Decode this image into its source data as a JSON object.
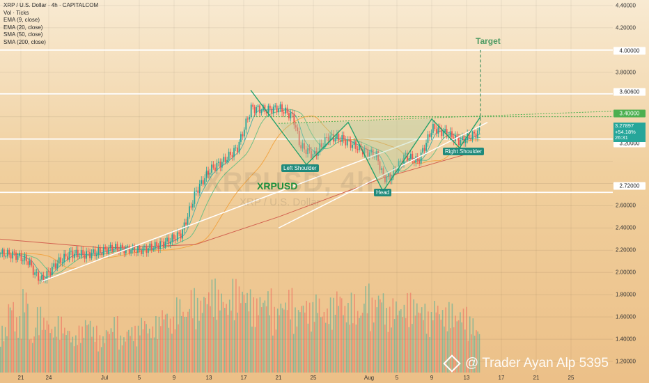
{
  "legend": {
    "title": "XRP / U.S. Dollar · 4h · CAPITALCOM",
    "lines": [
      "Vol · Ticks",
      "EMA (9, close)",
      "EMA (20, close)",
      "SMA (50, close)",
      "SMA (200, close)"
    ]
  },
  "watermark": {
    "name": "XRPUSD, 4h",
    "sub": "XRP / U.S. Dollar"
  },
  "symbol_label": "XRPUSD",
  "target_label": "Target",
  "pattern_labels": {
    "left_shoulder": "Left Shoulder",
    "head": "Head",
    "right_shoulder": "Right Shoulder"
  },
  "current_price": {
    "price": "3.27897",
    "change": "+54.18%",
    "countdown": "26:31"
  },
  "level_labels": {
    "l40": "4.00000",
    "l36": "3.60600",
    "l34": "3.40000",
    "l32": "3.20000",
    "l27": "2.72000"
  },
  "brand": "@ Trader Ayan Alp 5395",
  "colors": {
    "up": "#26a69a",
    "down": "#ef5350",
    "ema9": "#4fb1a5",
    "ema20": "#6fbf86",
    "sma50": "#f1a545",
    "sma200": "#d2604f",
    "trend": "#ffffff",
    "pattern_fill": "#a9cfa4",
    "pattern_line": "#24a16b"
  },
  "chart_data": {
    "type": "candlestick",
    "symbol": "XRP / U.S. Dollar",
    "interval": "4h",
    "ylim": [
      1.1,
      4.45
    ],
    "y_ticks": [
      "4.40000",
      "4.20000",
      "3.80000",
      "2.60000",
      "2.40000",
      "2.20000",
      "2.00000",
      "1.80000",
      "1.60000",
      "1.40000",
      "1.20000"
    ],
    "x_tick_labels": [
      "21",
      "24",
      "Jul",
      "5",
      "9",
      "13",
      "17",
      "21",
      "25",
      "Aug",
      "5",
      "9",
      "13",
      "17",
      "21",
      "25"
    ],
    "x_range": [
      0,
      88
    ],
    "x_ticks": [
      3,
      7,
      15,
      20,
      25,
      30,
      35,
      40,
      45,
      53,
      57,
      62,
      67,
      72,
      77,
      82
    ],
    "close_path": [
      [
        0,
        2.17
      ],
      [
        2,
        2.16
      ],
      [
        4,
        2.1
      ],
      [
        5,
        1.98
      ],
      [
        6,
        1.93
      ],
      [
        8,
        2.08
      ],
      [
        10,
        2.17
      ],
      [
        12,
        2.16
      ],
      [
        14,
        2.18
      ],
      [
        16,
        2.22
      ],
      [
        18,
        2.21
      ],
      [
        20,
        2.2
      ],
      [
        22,
        2.23
      ],
      [
        24,
        2.28
      ],
      [
        26,
        2.35
      ],
      [
        28,
        2.72
      ],
      [
        30,
        2.92
      ],
      [
        32,
        3.0
      ],
      [
        34,
        3.12
      ],
      [
        35,
        3.3
      ],
      [
        36,
        3.48
      ],
      [
        38,
        3.46
      ],
      [
        40,
        3.48
      ],
      [
        42,
        3.4
      ],
      [
        43,
        3.14
      ],
      [
        45,
        3.05
      ],
      [
        47,
        3.22
      ],
      [
        49,
        3.2
      ],
      [
        52,
        3.1
      ],
      [
        54,
        3.05
      ],
      [
        55,
        2.85
      ],
      [
        56,
        2.86
      ],
      [
        58,
        3.05
      ],
      [
        60,
        3.0
      ],
      [
        62,
        3.3
      ],
      [
        64,
        3.25
      ],
      [
        66,
        3.18
      ],
      [
        68,
        3.24
      ],
      [
        69,
        3.28
      ]
    ],
    "high_low_notes": {
      "swing_high": 3.64,
      "head_low": 2.72,
      "target": 4.0
    },
    "levels": [
      4.0,
      3.606,
      3.4,
      3.2,
      2.72
    ],
    "pattern": {
      "type": "head and shoulders (inverse)",
      "left_shoulder": [
        44,
        2.97
      ],
      "head": [
        55,
        2.73
      ],
      "right_shoulder": [
        66,
        3.12
      ]
    },
    "volume_scale_note": "volume histogram bottom panel, relative heights",
    "volume": [
      0.5,
      0.8,
      0.6,
      0.9,
      0.4,
      0.7,
      0.6,
      0.5,
      0.6,
      0.5,
      0.4,
      0.5,
      0.6,
      0.5,
      0.4,
      0.5,
      0.6,
      0.4,
      0.5,
      0.5,
      0.6,
      0.5,
      0.6,
      0.7,
      0.6,
      0.8,
      0.7,
      0.9,
      0.8,
      0.9,
      1.0,
      0.9,
      0.8,
      1.0,
      0.95,
      0.9,
      0.8,
      0.85,
      0.9,
      0.7,
      0.8,
      0.9,
      0.7,
      0.8,
      0.75,
      0.85,
      0.7,
      0.8,
      0.9,
      0.75,
      0.85,
      0.7,
      0.95,
      0.8,
      0.9,
      0.7,
      0.8,
      0.75,
      0.85,
      0.8,
      0.75,
      0.65,
      0.8,
      0.7,
      0.75,
      0.65,
      0.7,
      0.6,
      0.5
    ],
    "grid": true,
    "legend": "top-left"
  }
}
